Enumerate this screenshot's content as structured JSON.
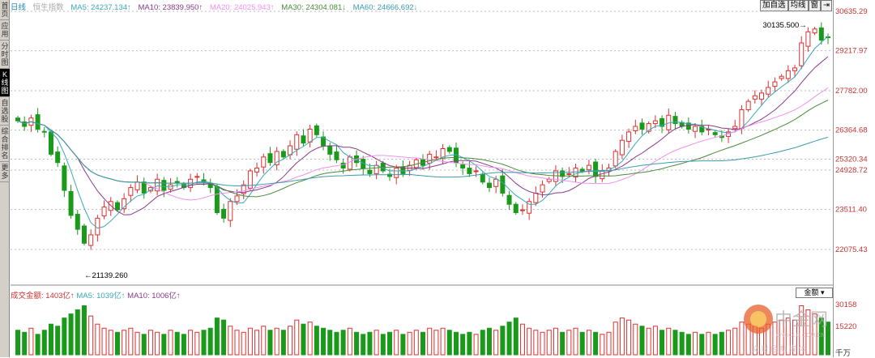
{
  "sidebar": {
    "items": [
      {
        "label": "首页"
      },
      {
        "label": "应用"
      },
      {
        "label": "分时图"
      },
      {
        "label": "K线图",
        "active": true
      },
      {
        "label": "自选股"
      },
      {
        "label": "综合排名"
      },
      {
        "label": "更多"
      }
    ]
  },
  "header": {
    "period": "日线",
    "index_name": "恒生指数",
    "ma5": "MA5: 24237.134↑",
    "ma10": "MA10: 23839.950↑",
    "ma20": "MA20: 24025.943↑",
    "ma30": "MA30: 24304.081↓",
    "ma60": "MA60: 24666.692↓"
  },
  "toolbar": {
    "add_watch": "加自选",
    "ma_lines": "均线",
    "window": "窗",
    "expand": "⇥"
  },
  "colors": {
    "up": "#e03030",
    "down": "#1a9a1a",
    "ma5": "#3aa8b8",
    "ma10": "#8a3a8a",
    "ma20": "#f090f0",
    "ma30": "#4a8a3a",
    "ma60": "#3a9aaa",
    "grid": "#bbbbbb",
    "axis_text": "#c33333"
  },
  "volume": {
    "header_amount": "成交金额: 1403亿↑",
    "header_ma5": "MA5: 1039亿↑",
    "header_ma10": "MA10: 1006亿↑",
    "dropdown": "金额",
    "axis": [
      "30158",
      "15220",
      "千万"
    ]
  },
  "watermark": {
    "text": "中金网",
    "url": "CNGOLD.COM.CN",
    "sub": "文 财 经 新 媒 体"
  },
  "chart_data": {
    "type": "candlestick",
    "y_ticks": [
      "30635.29",
      "29217.97",
      "27782.00",
      "26364.68",
      "25320.34",
      "24928.72",
      "23511.40",
      "22075.43"
    ],
    "ylim": [
      21500,
      30800
    ],
    "grid": true,
    "annotations": {
      "high": "30135.500",
      "low": "21139.260"
    },
    "close": [
      26700,
      26500,
      26800,
      26400,
      26300,
      25500,
      25200,
      24200,
      23300,
      22800,
      22300,
      22600,
      23200,
      23600,
      23800,
      23500,
      23900,
      24300,
      24500,
      24100,
      24300,
      24600,
      24200,
      24400,
      24500,
      24300,
      24600,
      24700,
      24500,
      24300,
      23400,
      23200,
      23800,
      24000,
      24400,
      24900,
      25000,
      25400,
      25200,
      25600,
      25400,
      25800,
      26200,
      25900,
      26400,
      26200,
      25800,
      25500,
      25300,
      25000,
      25400,
      25200,
      25000,
      24800,
      25100,
      24900,
      24700,
      25000,
      24800,
      25100,
      25300,
      25100,
      25500,
      25400,
      25700,
      25600,
      25200,
      25000,
      24800,
      24900,
      24500,
      24300,
      24600,
      24100,
      23700,
      23400,
      23500,
      23800,
      24100,
      24400,
      24600,
      24900,
      24700,
      24800,
      25000,
      24900,
      25100,
      24700,
      24900,
      25000,
      25600,
      26000,
      26300,
      26500,
      26400,
      26600,
      26700,
      26500,
      26900,
      26600,
      26500,
      26400,
      26500,
      26300,
      26400,
      26200,
      26100,
      26300,
      26500,
      27100,
      27400,
      27600,
      27700,
      27900,
      28100,
      28300,
      28500,
      28600,
      29500,
      29900,
      30000,
      29600,
      29700
    ],
    "volume": [
      12,
      11,
      13,
      10,
      12,
      15,
      14,
      18,
      20,
      22,
      24,
      19,
      15,
      13,
      12,
      11,
      12,
      13,
      11,
      10,
      12,
      11,
      10,
      12,
      11,
      10,
      12,
      11,
      12,
      13,
      18,
      17,
      14,
      12,
      11,
      13,
      12,
      14,
      12,
      13,
      12,
      14,
      17,
      15,
      16,
      14,
      13,
      12,
      11,
      12,
      13,
      11,
      10,
      11,
      12,
      10,
      11,
      12,
      10,
      11,
      12,
      11,
      13,
      12,
      13,
      12,
      11,
      10,
      11,
      10,
      12,
      13,
      12,
      14,
      16,
      18,
      15,
      13,
      12,
      11,
      12,
      13,
      11,
      12,
      13,
      11,
      12,
      11,
      10,
      11,
      16,
      18,
      17,
      15,
      14,
      13,
      14,
      12,
      13,
      12,
      11,
      10,
      11,
      10,
      11,
      10,
      11,
      12,
      13,
      16,
      15,
      14,
      13,
      15,
      16,
      17,
      18,
      17,
      24,
      22,
      20,
      18,
      16
    ]
  }
}
